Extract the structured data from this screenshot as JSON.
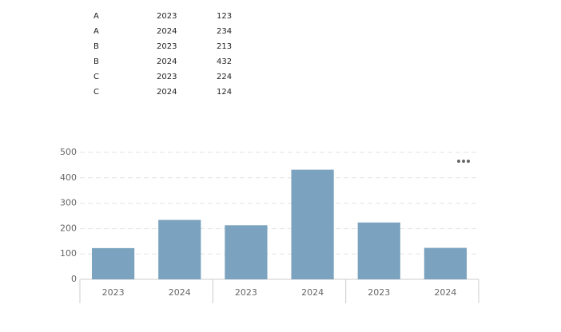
{
  "table": {
    "rows": [
      [
        "A",
        "2023",
        "123"
      ],
      [
        "A",
        "2024",
        "234"
      ],
      [
        "B",
        "2023",
        "213"
      ],
      [
        "B",
        "2024",
        "432"
      ],
      [
        "C",
        "2023",
        "224"
      ],
      [
        "C",
        "2024",
        "124"
      ]
    ]
  },
  "chart_data": {
    "type": "bar",
    "categories": [
      "2023",
      "2024",
      "2023",
      "2024",
      "2023",
      "2024"
    ],
    "values": [
      123,
      234,
      213,
      432,
      224,
      124
    ],
    "color": "#7ba3bf",
    "ylim": [
      0,
      500
    ],
    "yticks": [
      0,
      100,
      200,
      300,
      400,
      500
    ],
    "grid": true
  }
}
